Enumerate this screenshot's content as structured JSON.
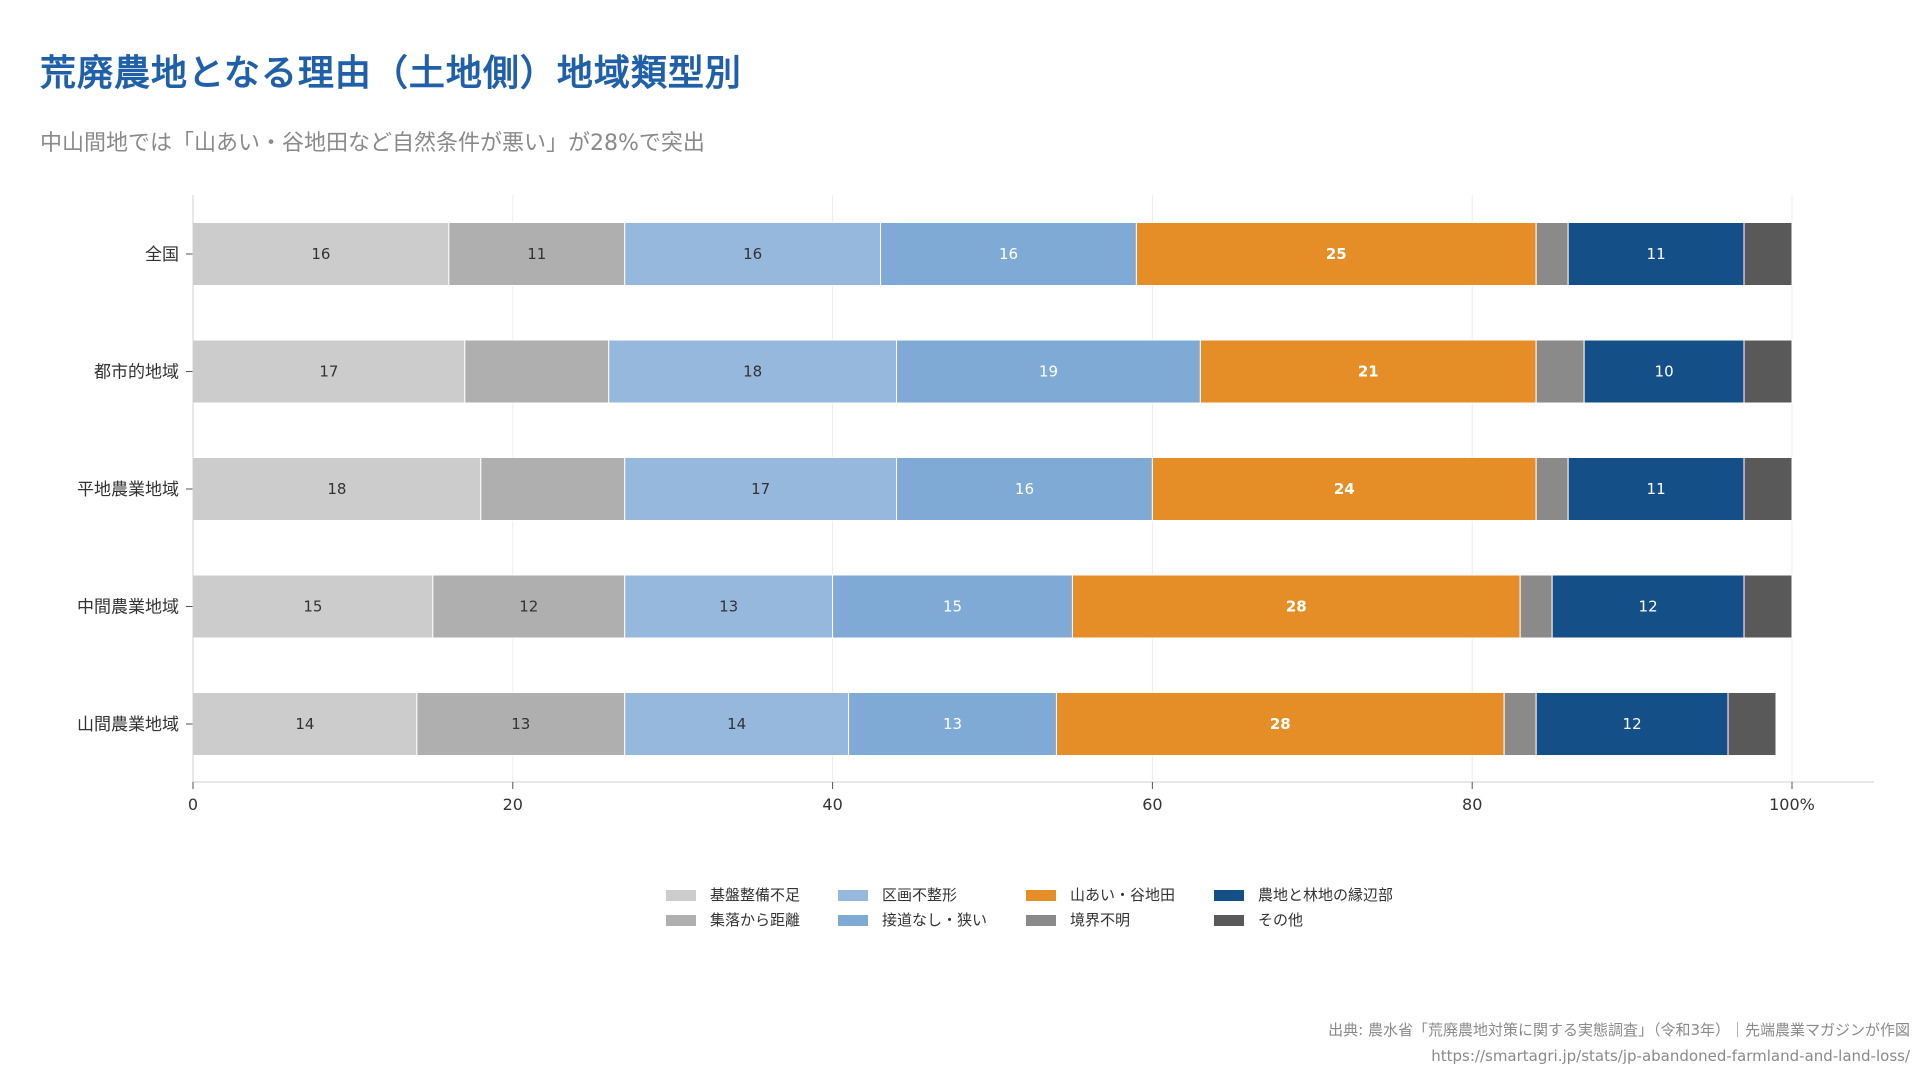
{
  "title": "荒廃農地となる理由（土地側）地域類型別",
  "subtitle": "中山間地では「山あい・谷地田など自然条件が悪い」が28%で突出",
  "source": {
    "line1": "出典: 農水省「荒廃農地対策に関する実態調査」（令和3年）｜先端農業マガジンが作図",
    "line2": "https://smartagri.jp/stats/jp-abandoned-farmland-and-land-loss/"
  },
  "chart_data": {
    "type": "bar",
    "orientation": "horizontal",
    "stacked": true,
    "categories": [
      "全国",
      "都市的地域",
      "平地農業地域",
      "中間農業地域",
      "山間農業地域"
    ],
    "xlim": [
      0,
      100
    ],
    "xticks": [
      "0",
      "20",
      "40",
      "60",
      "80",
      "100%"
    ],
    "xtick_values": [
      0,
      20,
      40,
      60,
      80,
      100
    ],
    "grid": true,
    "label_threshold": 10,
    "series": [
      {
        "name": "基盤整備不足",
        "color": "#cccccc",
        "label_color": "#333333",
        "bold": false,
        "values": [
          16,
          17,
          18,
          15,
          14
        ]
      },
      {
        "name": "集落から距離",
        "color": "#afafaf",
        "label_color": "#333333",
        "bold": false,
        "values": [
          11,
          9,
          9,
          12,
          13
        ]
      },
      {
        "name": "区画不整形",
        "color": "#96b8dc",
        "label_color": "#333333",
        "bold": false,
        "values": [
          16,
          18,
          17,
          13,
          14
        ]
      },
      {
        "name": "接道なし・狭い",
        "color": "#7eaad5",
        "label_color": "#ffffff",
        "bold": false,
        "values": [
          16,
          19,
          16,
          15,
          13
        ]
      },
      {
        "name": "山あい・谷地田",
        "color": "#e58e27",
        "label_color": "#ffffff",
        "bold": true,
        "values": [
          25,
          21,
          24,
          28,
          28
        ]
      },
      {
        "name": "境界不明",
        "color": "#8a8a8a",
        "label_color": "#ffffff",
        "bold": false,
        "values": [
          2,
          3,
          2,
          2,
          2
        ]
      },
      {
        "name": "農地と林地の縁辺部",
        "color": "#154f87",
        "label_color": "#ffffff",
        "bold": false,
        "values": [
          11,
          10,
          11,
          12,
          12
        ]
      },
      {
        "name": "その他",
        "color": "#595959",
        "label_color": "#ffffff",
        "bold": false,
        "values": [
          3,
          3,
          3,
          3,
          3
        ]
      }
    ]
  }
}
